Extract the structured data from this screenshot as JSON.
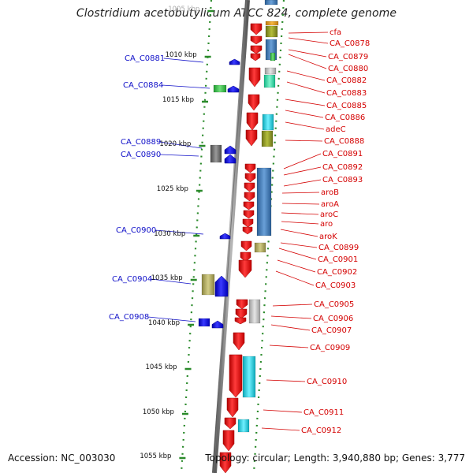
{
  "title": "Clostridium acetobutylicum ATCC 824, complete genome",
  "footer": {
    "accession": "Accession: NC_003030",
    "topology": "Topology: circular; Length: 3,940,880 bp; Genes: 3,777"
  },
  "colors": {
    "left_label": "#1010c8",
    "right_label": "#d40000",
    "strand_rail": "#808080",
    "tick": "#2a8a2a",
    "gene_red": "#e61010",
    "gene_blue": "#1515e6"
  },
  "kbp_ticks": [
    "1005 kbp",
    "1010 kbp",
    "1015 kbp",
    "1020 kbp",
    "1025 kbp",
    "1030 kbp",
    "1035 kbp",
    "1040 kbp",
    "1045 kbp",
    "1050 kbp",
    "1055 kbp"
  ],
  "left_genes": [
    "CA_C0881",
    "CA_C0884",
    "CA_C0889",
    "CA_C0890",
    "CA_C0900",
    "CA_C0904",
    "CA_C0908"
  ],
  "right_genes": [
    "cfa",
    "CA_C0878",
    "CA_C0879",
    "CA_C0880",
    "CA_C0882",
    "CA_C0883",
    "CA_C0885",
    "CA_C0886",
    "adeC",
    "CA_C0888",
    "CA_C0891",
    "CA_C0892",
    "CA_C0893",
    "aroB",
    "aroA",
    "aroC",
    "aro",
    "aroK",
    "CA_C0899",
    "CA_C0901",
    "CA_C0902",
    "CA_C0903",
    "CA_C0905",
    "CA_C0906",
    "CA_C0907",
    "CA_C0909",
    "CA_C0910",
    "CA_C0911",
    "CA_C0912"
  ]
}
